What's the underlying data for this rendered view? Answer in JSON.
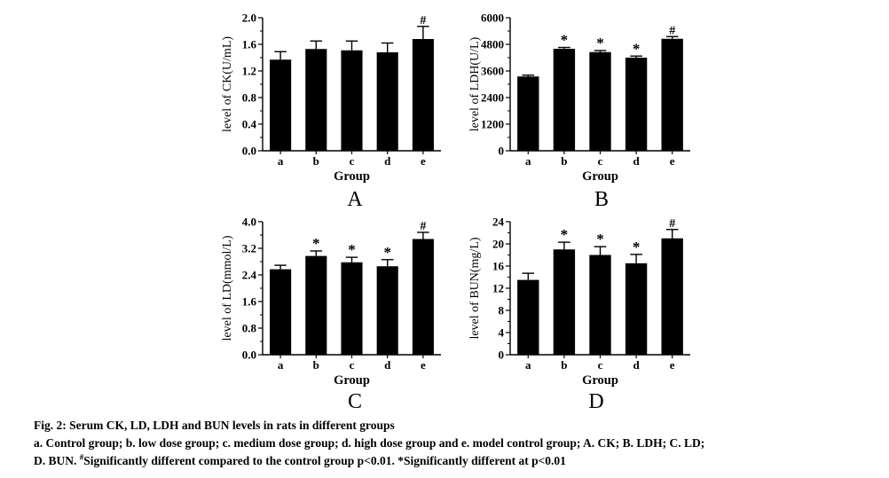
{
  "chart_data": [
    {
      "panel": "A",
      "type": "bar",
      "xlabel": "Group",
      "ylabel": "level of CK(U/mL)",
      "categories": [
        "a",
        "b",
        "c",
        "d",
        "e"
      ],
      "values": [
        1.37,
        1.53,
        1.51,
        1.48,
        1.68
      ],
      "errors": [
        0.12,
        0.12,
        0.14,
        0.14,
        0.19
      ],
      "markers": [
        "",
        "",
        "",
        "",
        "#"
      ],
      "ylim": [
        0,
        2.0
      ],
      "yticks": [
        "0.0",
        "0.4",
        "0.8",
        "1.2",
        "1.6",
        "2.0"
      ],
      "ytick_values": [
        0,
        0.4,
        0.8,
        1.2,
        1.6,
        2.0
      ]
    },
    {
      "panel": "B",
      "type": "bar",
      "xlabel": "Group",
      "ylabel": "level of LDH(U/L)",
      "categories": [
        "a",
        "b",
        "c",
        "d",
        "e"
      ],
      "values": [
        3350,
        4600,
        4450,
        4200,
        5050
      ],
      "errors": [
        60,
        60,
        70,
        70,
        100
      ],
      "markers": [
        "",
        "*",
        "*",
        "*",
        "#"
      ],
      "ylim": [
        0,
        6000
      ],
      "yticks": [
        "0",
        "1200",
        "2400",
        "3600",
        "4800",
        "6000"
      ],
      "ytick_values": [
        0,
        1200,
        2400,
        3600,
        4800,
        6000
      ]
    },
    {
      "panel": "C",
      "type": "bar",
      "xlabel": "Group",
      "ylabel": "level of LD(mmol/L)",
      "categories": [
        "a",
        "b",
        "c",
        "d",
        "e"
      ],
      "values": [
        2.57,
        2.97,
        2.78,
        2.66,
        3.48
      ],
      "errors": [
        0.12,
        0.15,
        0.15,
        0.2,
        0.2
      ],
      "markers": [
        "",
        "*",
        "*",
        "*",
        "#"
      ],
      "ylim": [
        0,
        4.0
      ],
      "yticks": [
        "0.0",
        "0.8",
        "1.6",
        "2.4",
        "3.2",
        "4.0"
      ],
      "ytick_values": [
        0,
        0.8,
        1.6,
        2.4,
        3.2,
        4.0
      ]
    },
    {
      "panel": "D",
      "type": "bar",
      "xlabel": "Group",
      "ylabel": "level of BUN(mg/L)",
      "categories": [
        "a",
        "b",
        "c",
        "d",
        "e"
      ],
      "values": [
        13.5,
        19.0,
        18.0,
        16.5,
        21.0
      ],
      "errors": [
        1.2,
        1.3,
        1.5,
        1.6,
        1.6
      ],
      "markers": [
        "",
        "*",
        "*",
        "*",
        "#"
      ],
      "ylim": [
        0,
        24
      ],
      "yticks": [
        "0",
        "4",
        "8",
        "12",
        "16",
        "20",
        "24"
      ],
      "ytick_values": [
        0,
        4,
        8,
        12,
        16,
        20,
        24
      ]
    }
  ],
  "caption": {
    "title": "Fig. 2: Serum CK, LD, LDH and BUN levels in rats in different groups",
    "line2": "a. Control group; b. low dose group; c. medium dose group; d. high dose group and e. model control group; A. CK; B. LDH; C. LD;",
    "line3_prefix": "D. BUN. ",
    "line3_sup": "#",
    "line3_rest": "Significantly different compared to the control group p<0.01. *Significantly different at p<0.01"
  }
}
